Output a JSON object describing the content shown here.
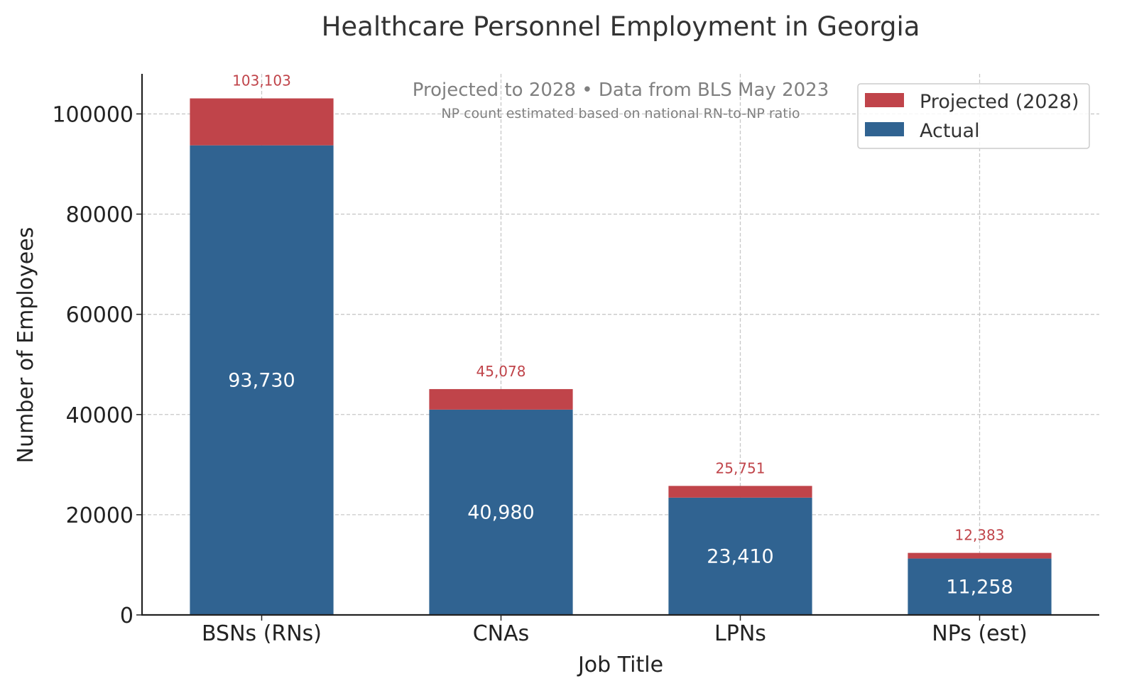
{
  "chart_data": {
    "type": "bar",
    "stacked": true,
    "title": "Healthcare Personnel Employment in Georgia",
    "subtitle": "Projected to 2028 • Data from BLS May 2023",
    "note": "NP count estimated based on national RN-to-NP ratio",
    "xlabel": "Job Title",
    "ylabel": "Number of Employees",
    "categories": [
      "BSNs (RNs)",
      "CNAs",
      "LPNs",
      "NPs (est)"
    ],
    "ylim": [
      0,
      108000
    ],
    "yticks": [
      0,
      20000,
      40000,
      60000,
      80000,
      100000
    ],
    "grid": true,
    "legend_position": "top-right",
    "series": [
      {
        "name": "Actual",
        "color": "#306391",
        "values": [
          93730,
          40980,
          23410,
          11258
        ],
        "labels": [
          "93,730",
          "40,980",
          "23,410",
          "11,258"
        ]
      },
      {
        "name": "Projected (2028)",
        "color": "#c0444a",
        "totals": [
          103103,
          45078,
          25751,
          12383
        ],
        "labels": [
          "103,103",
          "45,078",
          "25,751",
          "12,383"
        ]
      }
    ],
    "legend": [
      {
        "name": "Projected (2028)",
        "color": "#c0444a"
      },
      {
        "name": "Actual",
        "color": "#306391"
      }
    ]
  }
}
